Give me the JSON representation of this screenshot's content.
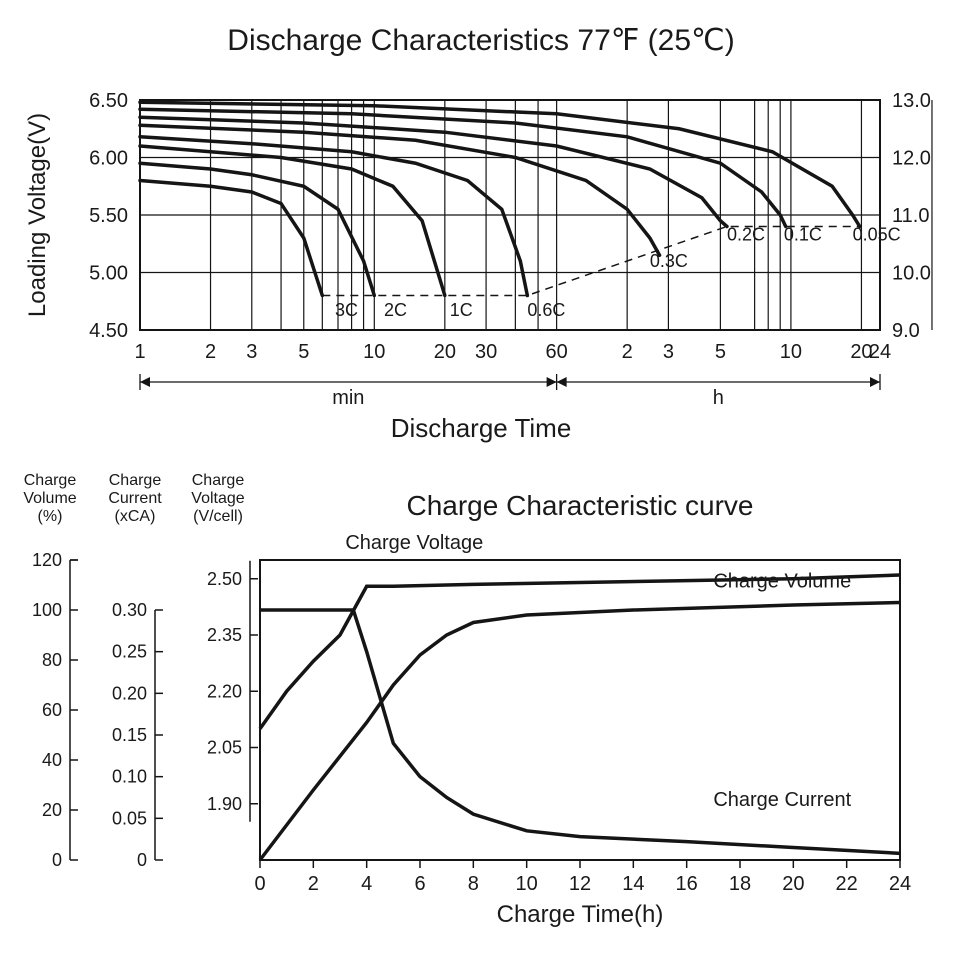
{
  "discharge": {
    "title": "Discharge Characteristics 77℉ (25℃)",
    "x_axis_label": "Discharge Time",
    "x_unit_left": "min",
    "x_unit_right": "h",
    "y_left_label": "Loading Voltage(V)",
    "y_left_ticks": [
      "4.50",
      "5.00",
      "5.50",
      "6.00",
      "6.50"
    ],
    "y_left_values": [
      4.5,
      5.0,
      5.5,
      6.0,
      6.5
    ],
    "y_right_ticks": [
      "9.0",
      "10.0",
      "11.0",
      "12.0",
      "13.0"
    ],
    "y_right_values": [
      9.0,
      10.0,
      11.0,
      12.0,
      13.0
    ],
    "x_ticks_min": [
      "1",
      "2",
      "3",
      "5",
      "10",
      "20",
      "30",
      "60"
    ],
    "x_ticks_min_vals": [
      1,
      2,
      3,
      5,
      10,
      20,
      30,
      60
    ],
    "x_ticks_h": [
      "2",
      "3",
      "5",
      "10",
      "20",
      "24"
    ],
    "x_ticks_h_vals": [
      120,
      180,
      300,
      600,
      1200,
      1440
    ],
    "x_extra_h_grid": [
      7,
      8,
      9,
      40
    ],
    "x_extra_min_grid": [
      4,
      6,
      7,
      8,
      9,
      40,
      50
    ],
    "colors": {
      "line": "#151515",
      "grid": "#151515",
      "bg": "#ffffff",
      "text": "#1a1a1a"
    },
    "font_sizes": {
      "title": 30,
      "axis": 20,
      "label": 18
    },
    "line_widths": {
      "grid": 1.2,
      "series": 3.5,
      "dash": 1.5
    },
    "series": [
      {
        "label": "3C",
        "label_xy": [
          6.8,
          4.62
        ],
        "pts": [
          [
            1,
            5.8
          ],
          [
            2,
            5.75
          ],
          [
            3,
            5.7
          ],
          [
            4,
            5.6
          ],
          [
            5,
            5.3
          ],
          [
            6,
            4.8
          ]
        ]
      },
      {
        "label": "2C",
        "label_xy": [
          11,
          4.62
        ],
        "pts": [
          [
            1,
            5.95
          ],
          [
            2,
            5.9
          ],
          [
            3,
            5.85
          ],
          [
            5,
            5.75
          ],
          [
            7,
            5.55
          ],
          [
            9,
            5.1
          ],
          [
            10,
            4.8
          ]
        ]
      },
      {
        "label": "1C",
        "label_xy": [
          21,
          4.62
        ],
        "pts": [
          [
            1,
            6.1
          ],
          [
            2,
            6.05
          ],
          [
            4,
            6.0
          ],
          [
            8,
            5.9
          ],
          [
            12,
            5.75
          ],
          [
            16,
            5.45
          ],
          [
            19,
            4.95
          ],
          [
            20,
            4.8
          ]
        ]
      },
      {
        "label": "0.6C",
        "label_xy": [
          45,
          4.62
        ],
        "pts": [
          [
            1,
            6.18
          ],
          [
            3,
            6.12
          ],
          [
            8,
            6.05
          ],
          [
            15,
            5.95
          ],
          [
            25,
            5.8
          ],
          [
            35,
            5.55
          ],
          [
            42,
            5.1
          ],
          [
            45,
            4.8
          ]
        ]
      },
      {
        "label": "0.3C",
        "label_xy": [
          150,
          5.05
        ],
        "pts": [
          [
            1,
            6.28
          ],
          [
            5,
            6.22
          ],
          [
            15,
            6.15
          ],
          [
            40,
            6.0
          ],
          [
            80,
            5.8
          ],
          [
            120,
            5.55
          ],
          [
            150,
            5.3
          ],
          [
            165,
            5.15
          ]
        ]
      },
      {
        "label": "0.2C",
        "label_xy": [
          320,
          5.28
        ],
        "pts": [
          [
            1,
            6.35
          ],
          [
            5,
            6.3
          ],
          [
            20,
            6.22
          ],
          [
            60,
            6.1
          ],
          [
            150,
            5.9
          ],
          [
            250,
            5.65
          ],
          [
            300,
            5.45
          ],
          [
            320,
            5.4
          ]
        ]
      },
      {
        "label": "0.1C",
        "label_xy": [
          560,
          5.28
        ],
        "pts": [
          [
            1,
            6.42
          ],
          [
            8,
            6.38
          ],
          [
            40,
            6.3
          ],
          [
            120,
            6.18
          ],
          [
            300,
            5.95
          ],
          [
            450,
            5.7
          ],
          [
            540,
            5.5
          ],
          [
            570,
            5.4
          ]
        ]
      },
      {
        "label": "0.05C",
        "label_xy": [
          1100,
          5.28
        ],
        "pts": [
          [
            1,
            6.48
          ],
          [
            10,
            6.45
          ],
          [
            60,
            6.38
          ],
          [
            200,
            6.25
          ],
          [
            500,
            6.05
          ],
          [
            900,
            5.75
          ],
          [
            1100,
            5.5
          ],
          [
            1180,
            5.4
          ]
        ]
      }
    ],
    "dash_line": [
      [
        6,
        4.8
      ],
      [
        45,
        4.8
      ],
      [
        320,
        5.4
      ],
      [
        1180,
        5.4
      ]
    ]
  },
  "charge": {
    "title": "Charge Characteristic curve",
    "x_axis_label": "Charge Time(h)",
    "x_ticks": [
      "0",
      "2",
      "4",
      "6",
      "8",
      "10",
      "12",
      "14",
      "16",
      "18",
      "20",
      "22",
      "24"
    ],
    "x_vals": [
      0,
      2,
      4,
      6,
      8,
      10,
      12,
      14,
      16,
      18,
      20,
      22,
      24
    ],
    "xlim": [
      0,
      24
    ],
    "axis1": {
      "title1": "Charge",
      "title2": "Volume",
      "title3": "(%)",
      "ticks": [
        "0",
        "20",
        "40",
        "60",
        "80",
        "100",
        "120"
      ],
      "vals": [
        0,
        20,
        40,
        60,
        80,
        100,
        120
      ]
    },
    "axis2": {
      "title1": "Charge",
      "title2": "Current",
      "title3": "(xCA)",
      "ticks": [
        "0",
        "0.05",
        "0.10",
        "0.15",
        "0.20",
        "0.25",
        "0.30"
      ],
      "vals": [
        0,
        0.05,
        0.1,
        0.15,
        0.2,
        0.25,
        0.3
      ]
    },
    "axis3": {
      "title1": "Charge",
      "title2": "Voltage",
      "title3": "(V/cell)",
      "ticks": [
        "1.90",
        "2.05",
        "2.20",
        "2.35",
        "2.50"
      ],
      "vals": [
        1.9,
        2.05,
        2.2,
        2.35,
        2.5
      ]
    },
    "colors": {
      "line": "#151515",
      "grid": "#151515",
      "bg": "#ffffff",
      "text": "#1a1a1a"
    },
    "font_sizes": {
      "title": 28,
      "axis": 22,
      "small": 16,
      "label": 20
    },
    "line_widths": {
      "axis": 1.5,
      "series": 3.5
    },
    "series_voltage": {
      "label": "Charge  Voltage",
      "label_xy": [
        3.2,
        2.58
      ],
      "pts": [
        [
          0,
          2.1
        ],
        [
          1,
          2.2
        ],
        [
          2,
          2.28
        ],
        [
          3,
          2.35
        ],
        [
          4,
          2.48
        ],
        [
          5,
          2.48
        ],
        [
          8,
          2.485
        ],
        [
          12,
          2.49
        ],
        [
          16,
          2.495
        ],
        [
          20,
          2.5
        ],
        [
          24,
          2.51
        ]
      ]
    },
    "series_current": {
      "label": "Charge  Current",
      "label_xy": [
        17,
        0.055
      ],
      "pts": [
        [
          0,
          0.3
        ],
        [
          3.5,
          0.3
        ],
        [
          4,
          0.25
        ],
        [
          5,
          0.14
        ],
        [
          6,
          0.1
        ],
        [
          7,
          0.075
        ],
        [
          8,
          0.055
        ],
        [
          10,
          0.035
        ],
        [
          12,
          0.028
        ],
        [
          16,
          0.022
        ],
        [
          20,
          0.015
        ],
        [
          24,
          0.008
        ]
      ]
    },
    "series_volume": {
      "label": "Charge  Volume",
      "label_xy": [
        17,
        109
      ],
      "pts": [
        [
          0,
          0
        ],
        [
          2,
          28
        ],
        [
          4,
          55
        ],
        [
          5,
          70
        ],
        [
          6,
          82
        ],
        [
          7,
          90
        ],
        [
          8,
          95
        ],
        [
          10,
          98
        ],
        [
          14,
          100
        ],
        [
          20,
          102
        ],
        [
          24,
          103
        ]
      ]
    }
  }
}
